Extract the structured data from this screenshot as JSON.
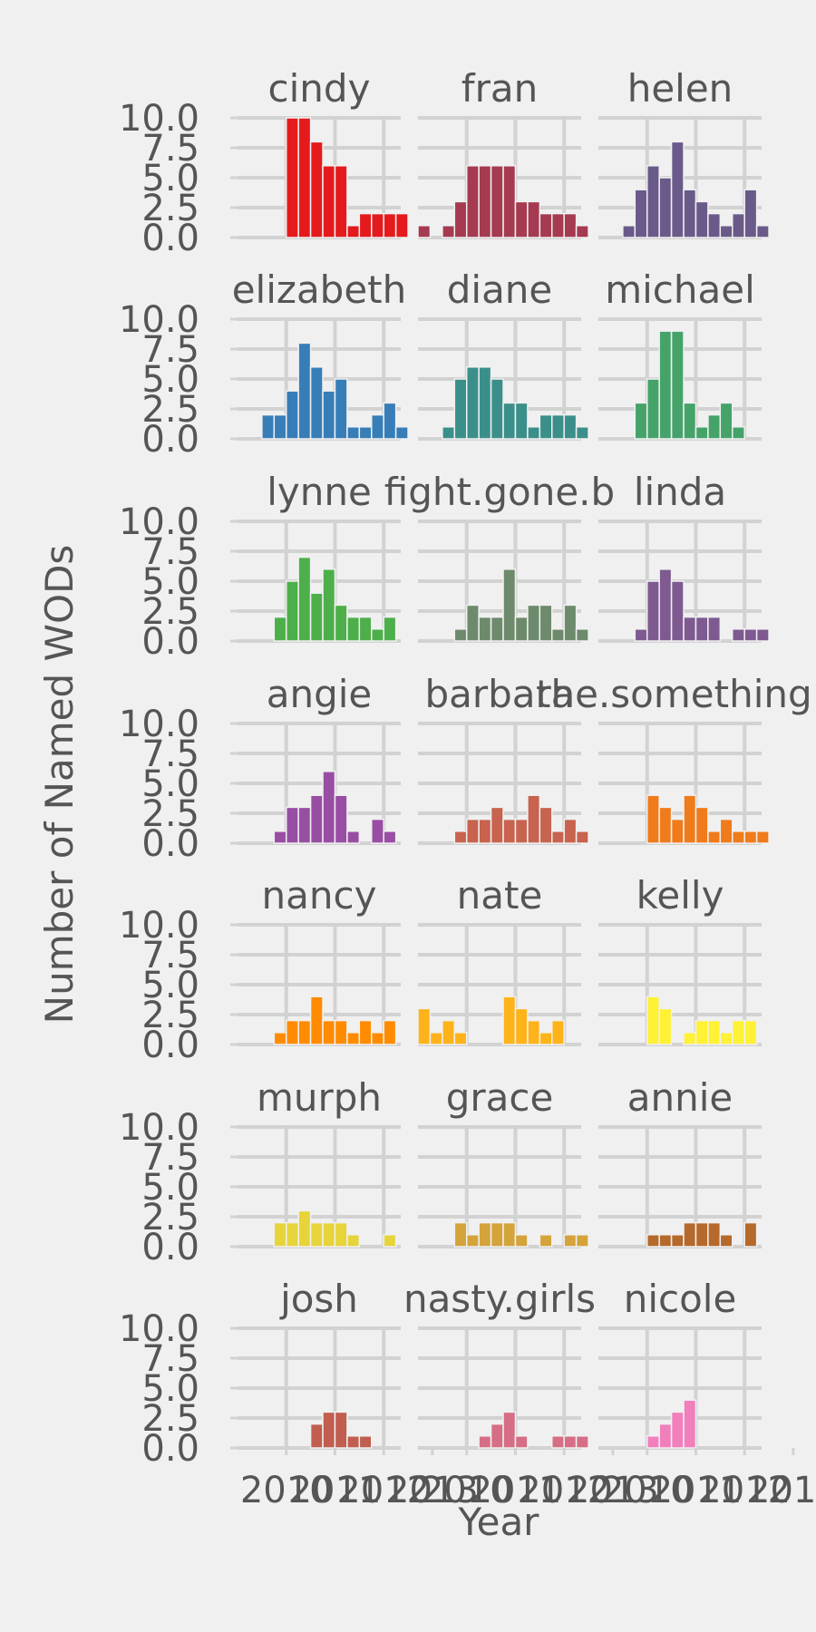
{
  "chart_data": {
    "type": "bar",
    "layout": "facet_wrap",
    "title": "",
    "xlabel": "Year",
    "ylabel": "Number of Named WODs",
    "ylim": [
      0,
      10
    ],
    "y_ticks": [
      "0.0",
      "2.5",
      "5.0",
      "7.5",
      "10.0"
    ],
    "x_tick_labels": [
      "2010",
      "2011",
      "2012",
      "2013"
    ],
    "x_tick_years": [
      2010,
      2011,
      2012,
      2013
    ],
    "years": [
      2009.33,
      2009.42,
      2009.5,
      2009.58,
      2009.67,
      2009.75,
      2009.83,
      2009.92,
      2010.0,
      2010.08,
      2010.17,
      2010.25,
      2010.33,
      2010.42,
      2010.5,
      2010.58,
      2010.67,
      2010.75,
      2010.83,
      2010.92,
      2011.0,
      2011.08,
      2011.17,
      2011.25,
      2011.33,
      2011.42,
      2011.5,
      2011.58,
      2011.67,
      2011.75,
      2011.83,
      2011.92,
      2012.0,
      2012.08,
      2012.17,
      2012.25,
      2012.33,
      2012.42,
      2012.5,
      2012.58,
      2012.67,
      2012.75,
      2012.83,
      2012.92,
      2013.0,
      2013.08,
      2013.17,
      2013.25,
      2013.33
    ],
    "bar_width_years": 0.08333,
    "series": [
      {
        "name": "cindy",
        "color": "#e41a1c",
        "points": [
          [
            2010.0,
            10
          ],
          [
            2010.25,
            10
          ],
          [
            2010.5,
            8
          ],
          [
            2010.75,
            6
          ],
          [
            2011.0,
            6
          ],
          [
            2011.25,
            1
          ],
          [
            2011.5,
            2
          ],
          [
            2011.75,
            2
          ],
          [
            2012.0,
            2
          ],
          [
            2012.25,
            2
          ]
        ]
      },
      {
        "name": "fran",
        "color": "#a53a50",
        "points": [
          [
            2009.0,
            1
          ],
          [
            2009.5,
            1
          ],
          [
            2009.75,
            3
          ],
          [
            2010.0,
            6
          ],
          [
            2010.25,
            6
          ],
          [
            2010.5,
            6
          ],
          [
            2010.75,
            6
          ],
          [
            2011.0,
            3
          ],
          [
            2011.25,
            3
          ],
          [
            2011.5,
            2
          ],
          [
            2011.75,
            2
          ],
          [
            2012.0,
            2
          ],
          [
            2012.25,
            1
          ]
        ]
      },
      {
        "name": "helen",
        "color": "#6a5a8a",
        "points": [
          [
            2009.5,
            1
          ],
          [
            2009.75,
            4
          ],
          [
            2010.0,
            6
          ],
          [
            2010.25,
            5
          ],
          [
            2010.5,
            8
          ],
          [
            2010.75,
            4
          ],
          [
            2011.0,
            3
          ],
          [
            2011.25,
            2
          ],
          [
            2011.5,
            1
          ],
          [
            2011.75,
            2
          ],
          [
            2012.0,
            4
          ],
          [
            2012.25,
            1
          ]
        ]
      },
      {
        "name": "elizabeth",
        "color": "#377eb8",
        "points": [
          [
            2009.5,
            2
          ],
          [
            2009.75,
            2
          ],
          [
            2010.0,
            4
          ],
          [
            2010.25,
            8
          ],
          [
            2010.5,
            6
          ],
          [
            2010.75,
            4
          ],
          [
            2011.0,
            5
          ],
          [
            2011.25,
            1
          ],
          [
            2011.5,
            1
          ],
          [
            2011.75,
            2
          ],
          [
            2012.0,
            3
          ],
          [
            2012.25,
            1
          ]
        ]
      },
      {
        "name": "diane",
        "color": "#3b8f8a",
        "points": [
          [
            2009.5,
            1
          ],
          [
            2009.75,
            5
          ],
          [
            2010.0,
            6
          ],
          [
            2010.25,
            6
          ],
          [
            2010.5,
            5
          ],
          [
            2010.75,
            3
          ],
          [
            2011.0,
            3
          ],
          [
            2011.25,
            1
          ],
          [
            2011.5,
            2
          ],
          [
            2011.75,
            2
          ],
          [
            2012.0,
            2
          ],
          [
            2012.25,
            1
          ]
        ]
      },
      {
        "name": "michael",
        "color": "#45a36a",
        "points": [
          [
            2009.75,
            3
          ],
          [
            2010.0,
            5
          ],
          [
            2010.25,
            9
          ],
          [
            2010.5,
            9
          ],
          [
            2010.75,
            3
          ],
          [
            2011.0,
            1
          ],
          [
            2011.25,
            2
          ],
          [
            2011.5,
            3
          ],
          [
            2011.75,
            1
          ]
        ]
      },
      {
        "name": "lynne",
        "color": "#4daf4a",
        "points": [
          [
            2009.75,
            2
          ],
          [
            2010.0,
            5
          ],
          [
            2010.25,
            7
          ],
          [
            2010.5,
            4
          ],
          [
            2010.75,
            6
          ],
          [
            2011.0,
            3
          ],
          [
            2011.25,
            2
          ],
          [
            2011.5,
            2
          ],
          [
            2011.75,
            1
          ],
          [
            2012.0,
            2
          ]
        ]
      },
      {
        "name": "fight.gone.b",
        "color": "#6e8a6c",
        "points": [
          [
            2009.75,
            1
          ],
          [
            2010.0,
            3
          ],
          [
            2010.25,
            2
          ],
          [
            2010.5,
            2
          ],
          [
            2010.75,
            6
          ],
          [
            2011.0,
            2
          ],
          [
            2011.25,
            3
          ],
          [
            2011.5,
            3
          ],
          [
            2011.75,
            1
          ],
          [
            2012.0,
            3
          ],
          [
            2012.25,
            1
          ]
        ]
      },
      {
        "name": "linda",
        "color": "#7e5a91",
        "points": [
          [
            2009.75,
            1
          ],
          [
            2010.0,
            5
          ],
          [
            2010.25,
            6
          ],
          [
            2010.5,
            5
          ],
          [
            2010.75,
            2
          ],
          [
            2011.0,
            2
          ],
          [
            2011.25,
            2
          ],
          [
            2011.75,
            1
          ],
          [
            2012.0,
            1
          ],
          [
            2012.25,
            1
          ]
        ]
      },
      {
        "name": "angie",
        "color": "#984ea3",
        "points": [
          [
            2009.75,
            1
          ],
          [
            2010.0,
            3
          ],
          [
            2010.25,
            3
          ],
          [
            2010.5,
            4
          ],
          [
            2010.75,
            6
          ],
          [
            2011.0,
            4
          ],
          [
            2011.25,
            1
          ],
          [
            2011.75,
            2
          ],
          [
            2012.0,
            1
          ]
        ]
      },
      {
        "name": "barbara",
        "color": "#c7634e",
        "points": [
          [
            2009.75,
            1
          ],
          [
            2010.0,
            2
          ],
          [
            2010.25,
            2
          ],
          [
            2010.5,
            3
          ],
          [
            2010.75,
            2
          ],
          [
            2011.0,
            2
          ],
          [
            2011.25,
            4
          ],
          [
            2011.5,
            3
          ],
          [
            2011.75,
            1
          ],
          [
            2012.0,
            2
          ],
          [
            2012.25,
            1
          ]
        ]
      },
      {
        "name": "the.something.",
        "color": "#f07b1a",
        "points": [
          [
            2010.0,
            4
          ],
          [
            2010.25,
            3
          ],
          [
            2010.5,
            2
          ],
          [
            2010.75,
            4
          ],
          [
            2011.0,
            3
          ],
          [
            2011.25,
            1
          ],
          [
            2011.5,
            2
          ],
          [
            2011.75,
            1
          ],
          [
            2012.0,
            1
          ],
          [
            2012.25,
            1
          ]
        ]
      },
      {
        "name": "nancy",
        "color": "#ff8c00",
        "points": [
          [
            2009.75,
            1
          ],
          [
            2010.0,
            2
          ],
          [
            2010.25,
            2
          ],
          [
            2010.5,
            4
          ],
          [
            2010.75,
            2
          ],
          [
            2011.0,
            2
          ],
          [
            2011.25,
            1
          ],
          [
            2011.5,
            2
          ],
          [
            2011.75,
            1
          ],
          [
            2012.0,
            2
          ]
        ]
      },
      {
        "name": "nate",
        "color": "#ffb31a",
        "points": [
          [
            2009.0,
            3
          ],
          [
            2009.25,
            1
          ],
          [
            2009.5,
            2
          ],
          [
            2009.75,
            1
          ],
          [
            2010.75,
            4
          ],
          [
            2011.0,
            3
          ],
          [
            2011.25,
            2
          ],
          [
            2011.5,
            1
          ],
          [
            2011.75,
            2
          ]
        ]
      },
      {
        "name": "kelly",
        "color": "#fff133",
        "points": [
          [
            2010.0,
            4
          ],
          [
            2010.25,
            3
          ],
          [
            2010.75,
            1
          ],
          [
            2011.0,
            2
          ],
          [
            2011.25,
            2
          ],
          [
            2011.5,
            1
          ],
          [
            2011.75,
            2
          ],
          [
            2012.0,
            2
          ]
        ]
      },
      {
        "name": "murph",
        "color": "#e6d43a",
        "points": [
          [
            2009.75,
            2
          ],
          [
            2010.0,
            2
          ],
          [
            2010.25,
            3
          ],
          [
            2010.5,
            2
          ],
          [
            2010.75,
            2
          ],
          [
            2011.0,
            2
          ],
          [
            2011.25,
            1
          ],
          [
            2012.0,
            1
          ]
        ]
      },
      {
        "name": "grace",
        "color": "#d4a33a",
        "points": [
          [
            2009.75,
            2
          ],
          [
            2010.0,
            1
          ],
          [
            2010.25,
            2
          ],
          [
            2010.5,
            2
          ],
          [
            2010.75,
            2
          ],
          [
            2011.0,
            1
          ],
          [
            2011.5,
            1
          ],
          [
            2012.0,
            1
          ],
          [
            2012.25,
            1
          ]
        ]
      },
      {
        "name": "annie",
        "color": "#b5692a",
        "points": [
          [
            2010.0,
            1
          ],
          [
            2010.25,
            1
          ],
          [
            2010.5,
            1
          ],
          [
            2010.75,
            2
          ],
          [
            2011.0,
            2
          ],
          [
            2011.25,
            2
          ],
          [
            2011.5,
            1
          ],
          [
            2012.0,
            2
          ]
        ]
      },
      {
        "name": "josh",
        "color": "#c15e4f",
        "points": [
          [
            2010.5,
            2
          ],
          [
            2010.75,
            3
          ],
          [
            2011.0,
            3
          ],
          [
            2011.25,
            1
          ],
          [
            2011.5,
            1
          ]
        ]
      },
      {
        "name": "nasty.girls",
        "color": "#d66e86",
        "points": [
          [
            2010.25,
            1
          ],
          [
            2010.5,
            2
          ],
          [
            2010.75,
            3
          ],
          [
            2011.0,
            1
          ],
          [
            2011.75,
            1
          ],
          [
            2012.0,
            1
          ],
          [
            2012.25,
            1
          ]
        ]
      },
      {
        "name": "nicole",
        "color": "#f07fbc",
        "points": [
          [
            2010.0,
            1
          ],
          [
            2010.25,
            2
          ],
          [
            2010.5,
            3
          ],
          [
            2010.75,
            4
          ]
        ]
      }
    ]
  }
}
